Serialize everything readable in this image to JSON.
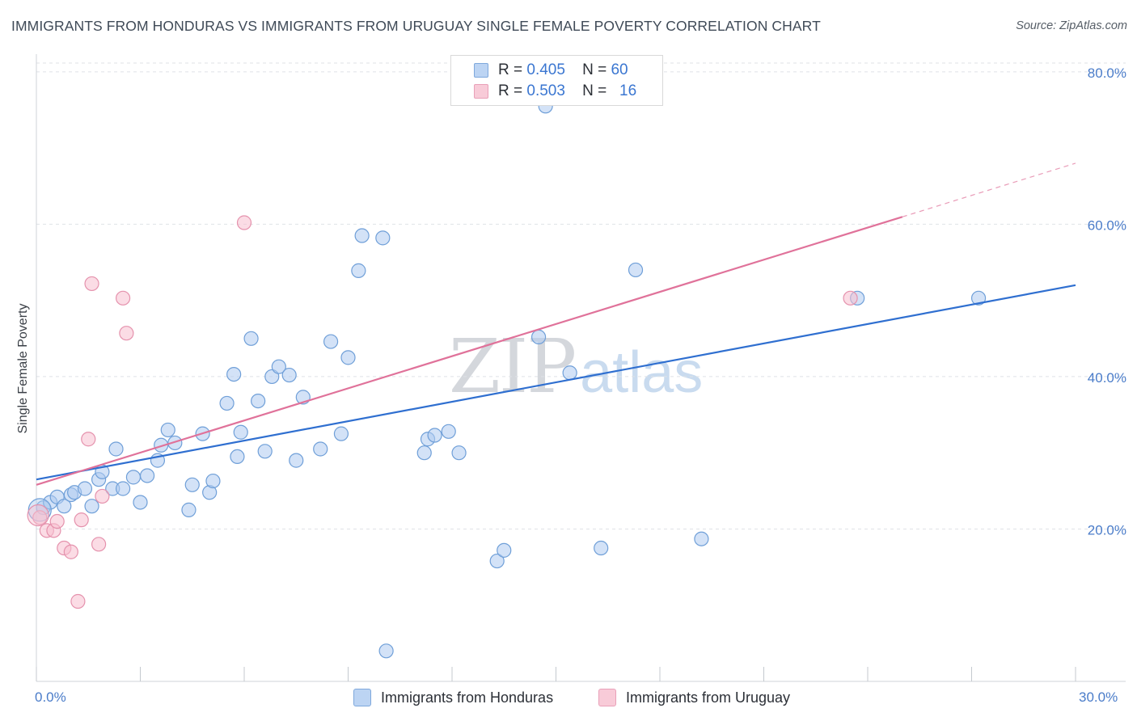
{
  "title": "IMMIGRANTS FROM HONDURAS VS IMMIGRANTS FROM URUGUAY SINGLE FEMALE POVERTY CORRELATION CHART",
  "source": "Source: ZipAtlas.com",
  "watermark": {
    "zip": "ZIP",
    "atlas": "atlas"
  },
  "colors": {
    "honduras_fill": "#aecbf0",
    "honduras_stroke": "#6f9fd8",
    "honduras_line": "#2f6fd0",
    "uruguay_fill": "#f7c0d0",
    "uruguay_stroke": "#e592ad",
    "uruguay_line": "#e0729a",
    "grid": "#dfe2e6",
    "axis_text": "#4a7cc9"
  },
  "legend": {
    "r_label": "R =",
    "n_label": "N =",
    "honduras_r": "0.405",
    "honduras_n": "60",
    "uruguay_r": "0.503",
    "uruguay_n": "16"
  },
  "bottom_legend": {
    "honduras": "Immigrants from Honduras",
    "uruguay": "Immigrants from Uruguay"
  },
  "chart_data": {
    "type": "scatter",
    "title": "IMMIGRANTS FROM HONDURAS VS IMMIGRANTS FROM URUGUAY SINGLE FEMALE POVERTY CORRELATION CHART",
    "xlabel": "",
    "ylabel": "Single Female Poverty",
    "xlim": [
      0,
      30
    ],
    "ylim": [
      0,
      82
    ],
    "x_tick_labels": [
      "0.0%",
      "30.0%"
    ],
    "y_ticks": [
      20,
      40,
      60,
      80
    ],
    "y_tick_labels": [
      "20.0%",
      "40.0%",
      "60.0%",
      "80.0%"
    ],
    "grid": true,
    "legend_position": "top-center",
    "series": [
      {
        "name": "Immigrants from Honduras",
        "R": 0.405,
        "N": 60,
        "trend": {
          "x0": 0,
          "y0": 26.5,
          "x1": 30,
          "y1": 52.0
        },
        "points": [
          [
            0.2,
            22.8
          ],
          [
            0.4,
            23.5
          ],
          [
            0.6,
            24.2
          ],
          [
            0.8,
            23.0
          ],
          [
            1.0,
            24.5
          ],
          [
            1.1,
            24.8
          ],
          [
            1.4,
            25.3
          ],
          [
            1.6,
            23.0
          ],
          [
            1.8,
            26.5
          ],
          [
            1.9,
            27.5
          ],
          [
            2.2,
            25.3
          ],
          [
            2.3,
            30.5
          ],
          [
            2.5,
            25.3
          ],
          [
            2.8,
            26.8
          ],
          [
            3.0,
            23.5
          ],
          [
            3.2,
            27.0
          ],
          [
            3.5,
            29.0
          ],
          [
            3.6,
            31.0
          ],
          [
            3.8,
            33.0
          ],
          [
            4.0,
            31.3
          ],
          [
            4.4,
            22.5
          ],
          [
            4.5,
            25.8
          ],
          [
            4.8,
            32.5
          ],
          [
            5.0,
            24.8
          ],
          [
            5.1,
            26.3
          ],
          [
            5.5,
            36.5
          ],
          [
            5.7,
            40.3
          ],
          [
            5.8,
            29.5
          ],
          [
            5.9,
            32.7
          ],
          [
            6.2,
            45.0
          ],
          [
            6.4,
            36.8
          ],
          [
            6.6,
            30.2
          ],
          [
            6.8,
            40.0
          ],
          [
            7.0,
            41.3
          ],
          [
            7.3,
            40.2
          ],
          [
            7.5,
            29.0
          ],
          [
            7.7,
            37.3
          ],
          [
            8.2,
            30.5
          ],
          [
            8.5,
            44.6
          ],
          [
            8.8,
            32.5
          ],
          [
            9.0,
            42.5
          ],
          [
            9.3,
            53.9
          ],
          [
            9.4,
            58.5
          ],
          [
            10.0,
            58.2
          ],
          [
            10.1,
            4.0
          ],
          [
            11.2,
            30.0
          ],
          [
            11.3,
            31.8
          ],
          [
            11.5,
            32.3
          ],
          [
            11.9,
            32.8
          ],
          [
            12.2,
            30.0
          ],
          [
            13.3,
            15.8
          ],
          [
            13.5,
            17.2
          ],
          [
            14.5,
            45.2
          ],
          [
            14.7,
            75.5
          ],
          [
            15.4,
            40.5
          ],
          [
            16.3,
            17.5
          ],
          [
            17.3,
            54.0
          ],
          [
            19.2,
            18.7
          ],
          [
            23.7,
            50.3
          ],
          [
            27.2,
            50.3
          ]
        ]
      },
      {
        "name": "Immigrants from Uruguay",
        "R": 0.503,
        "N": 16,
        "trend": {
          "x0": 0,
          "y0": 25.8,
          "x1": 30,
          "y1": 68.0,
          "solid_until_x": 25.0
        },
        "points": [
          [
            0.1,
            21.5
          ],
          [
            0.3,
            19.8
          ],
          [
            0.5,
            19.8
          ],
          [
            0.6,
            21.0
          ],
          [
            0.8,
            17.5
          ],
          [
            1.0,
            17.0
          ],
          [
            1.2,
            10.5
          ],
          [
            1.3,
            21.2
          ],
          [
            1.5,
            31.8
          ],
          [
            1.6,
            52.2
          ],
          [
            1.8,
            18.0
          ],
          [
            1.9,
            24.3
          ],
          [
            2.5,
            50.3
          ],
          [
            2.6,
            45.7
          ],
          [
            6.0,
            60.2
          ],
          [
            23.5,
            50.3
          ]
        ]
      }
    ]
  }
}
